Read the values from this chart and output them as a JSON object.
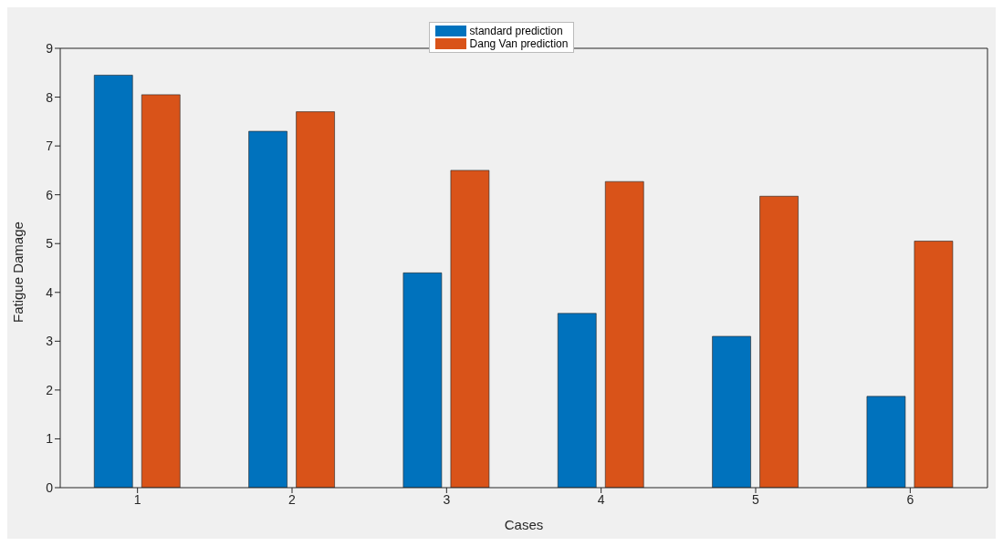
{
  "chart_data": {
    "type": "bar",
    "xlabel": "Cases",
    "ylabel": "Fatigue Damage",
    "categories": [
      "1",
      "2",
      "3",
      "4",
      "5",
      "6"
    ],
    "series": [
      {
        "name": "standard prediction",
        "color": "#0072bd",
        "values": [
          8.45,
          7.3,
          4.4,
          3.57,
          3.1,
          1.87
        ]
      },
      {
        "name": "Dang Van prediction",
        "color": "#d95319",
        "values": [
          8.05,
          7.7,
          6.5,
          6.27,
          5.97,
          5.05
        ]
      }
    ],
    "ylim": [
      0,
      9
    ],
    "yticks": [
      0,
      1,
      2,
      3,
      4,
      5,
      6,
      7,
      8,
      9
    ],
    "legend": "top"
  }
}
